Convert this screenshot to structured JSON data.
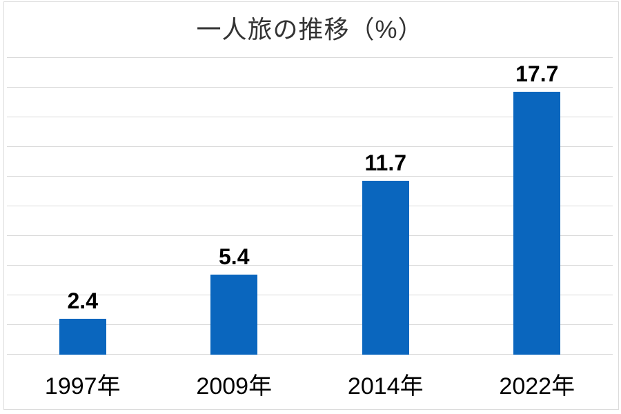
{
  "chart_data": {
    "type": "bar",
    "title": "一人旅の推移（%）",
    "categories": [
      "1997年",
      "2009年",
      "2014年",
      "2022年"
    ],
    "values": [
      2.4,
      5.4,
      11.7,
      17.7
    ],
    "data_labels": [
      "2.4",
      "5.4",
      "11.7",
      "17.7"
    ],
    "xlabel": "",
    "ylabel": "",
    "ylim": [
      0,
      20
    ],
    "gridline_step": 2,
    "grid": "horizontal-only",
    "legend": "none",
    "y_tick_labels_visible": false,
    "colors": {
      "bar": "#0a66be",
      "gridline": "#d9d9d9",
      "chart_border": "#dcdcdc",
      "title_text": "#333333",
      "label_text": "#000000",
      "background": "#ffffff"
    }
  }
}
